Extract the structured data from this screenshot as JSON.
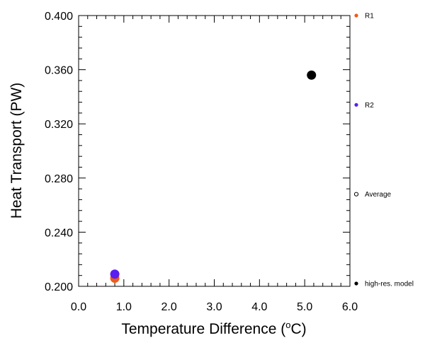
{
  "chart_data": {
    "type": "scatter",
    "title": "",
    "xlabel_main": "Temperature Difference (",
    "xlabel_sup": "o",
    "xlabel_unit_end": "C)",
    "ylabel": "Heat Transport (PW)",
    "xlim": [
      0.0,
      6.0
    ],
    "ylim": [
      0.2,
      0.4
    ],
    "x_ticks": [
      0.0,
      1.0,
      2.0,
      3.0,
      4.0,
      5.0,
      6.0
    ],
    "x_tick_labels": [
      "0.0",
      "1.0",
      "2.0",
      "3.0",
      "4.0",
      "5.0",
      "6.0"
    ],
    "y_ticks": [
      0.2,
      0.24,
      0.28,
      0.32,
      0.36,
      0.4
    ],
    "y_tick_labels": [
      "0.200",
      "0.240",
      "0.280",
      "0.320",
      "0.360",
      "0.400"
    ],
    "grid": false,
    "legend_position": "right-outside",
    "series": [
      {
        "name": "R1",
        "color": "#f05a14",
        "marker": "filled-circle",
        "points": [
          {
            "x": 0.8,
            "y": 0.206
          }
        ]
      },
      {
        "name": "R2",
        "color": "#5a1ef0",
        "marker": "filled-circle",
        "points": [
          {
            "x": 0.8,
            "y": 0.209
          }
        ]
      },
      {
        "name": "Average",
        "color": "#000000",
        "marker": "open-circle",
        "points": []
      },
      {
        "name": "high-res. model",
        "color": "#000000",
        "marker": "filled-circle",
        "points": [
          {
            "x": 5.15,
            "y": 0.356
          }
        ]
      }
    ]
  }
}
